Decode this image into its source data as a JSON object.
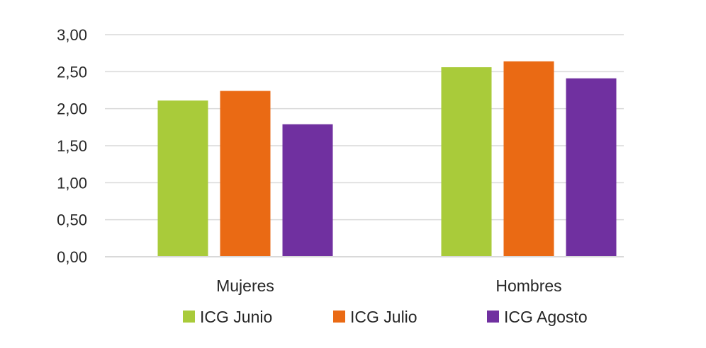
{
  "chart_data": {
    "type": "bar",
    "title": "",
    "xlabel": "",
    "ylabel": "",
    "categories": [
      "Mujeres",
      "Hombres"
    ],
    "series": [
      {
        "name": "ICG Junio",
        "values": [
          2.11,
          2.56
        ],
        "color": "#a9cb3a"
      },
      {
        "name": "ICG Julio",
        "values": [
          2.24,
          2.64
        ],
        "color": "#ea6a14"
      },
      {
        "name": "ICG Agosto",
        "values": [
          1.79,
          2.41
        ],
        "color": "#7030a0"
      }
    ],
    "ylim": [
      0,
      3
    ],
    "yticks": [
      0,
      0.5,
      1,
      1.5,
      2,
      2.5,
      3
    ],
    "ytick_labels": [
      "0,00",
      "0,50",
      "1,00",
      "1,50",
      "2,00",
      "2,50",
      "3,00"
    ],
    "grid": true,
    "legend_position": "bottom"
  }
}
